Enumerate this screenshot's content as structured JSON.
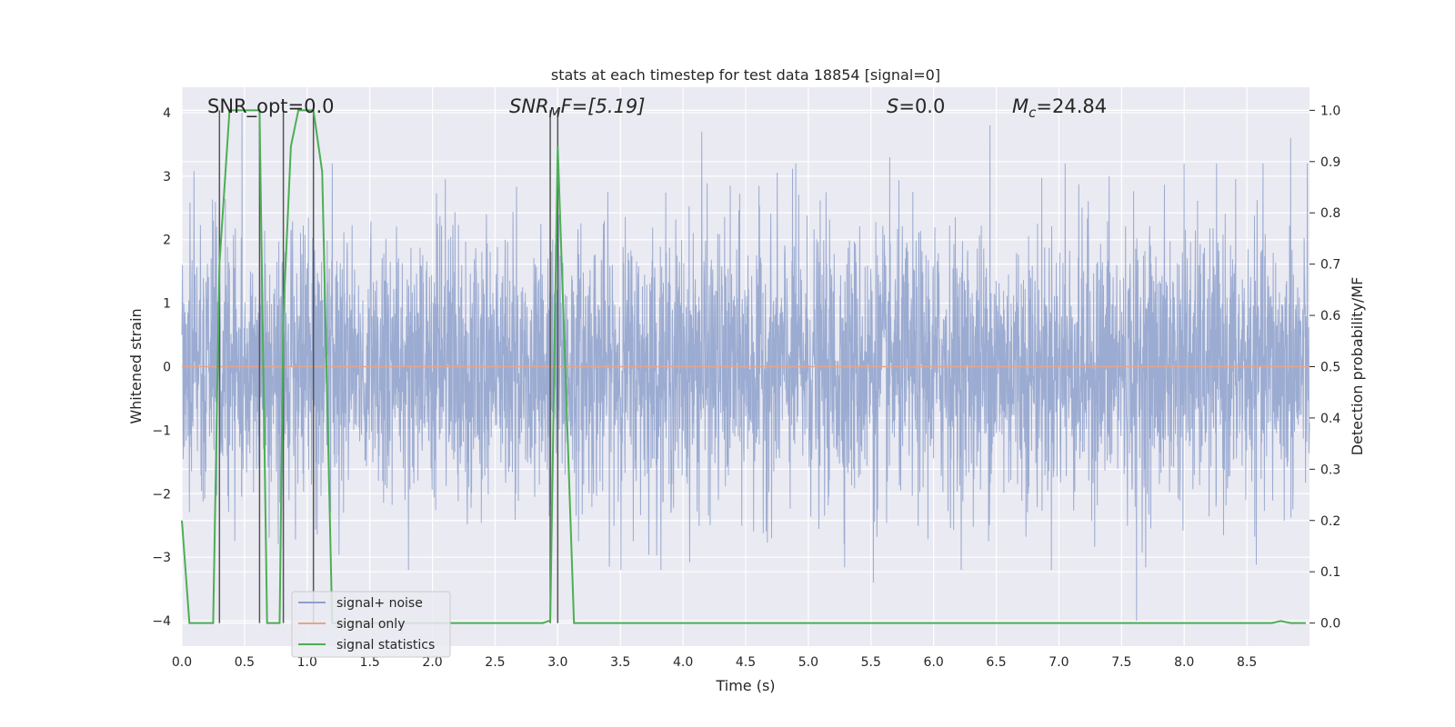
{
  "chart_data": {
    "type": "line",
    "title": "stats at each timestep for test data 18854 [signal=0]",
    "xlabel": "Time (s)",
    "ylabel_left": "Whitened strain",
    "ylabel_right": "Detection probability/MF",
    "xlim": [
      0.0,
      9.0
    ],
    "ylim_left": [
      -4.4,
      4.4
    ],
    "ylim_right": [
      -0.045,
      1.045
    ],
    "x_ticks": [
      "0.0",
      "0.5",
      "1.0",
      "1.5",
      "2.0",
      "2.5",
      "3.0",
      "3.5",
      "4.0",
      "4.5",
      "5.0",
      "5.5",
      "6.0",
      "6.5",
      "7.0",
      "7.5",
      "8.0",
      "8.5"
    ],
    "y_ticks_left": [
      "−4",
      "−3",
      "−2",
      "−1",
      "0",
      "1",
      "2",
      "3",
      "4"
    ],
    "y_ticks_right": [
      "0.0",
      "0.1",
      "0.2",
      "0.3",
      "0.4",
      "0.5",
      "0.6",
      "0.7",
      "0.8",
      "0.9",
      "1.0"
    ],
    "grid": true,
    "colors": {
      "background": "#eaeaf2",
      "grid": "#ffffff",
      "noise": "#8da0cb",
      "signal_only": "#e5a58a",
      "statistics": "#4cae55",
      "event_lines": "#555555"
    },
    "annotations": {
      "snr_opt": "SNR_opt=0.0",
      "snr_mf_main": "SNR",
      "snr_mf_sub": "M",
      "snr_mf_rest": "F=[5.19]",
      "s_main": "S",
      "s_rest": "=0.0",
      "mc_main": "M",
      "mc_sub": "c",
      "mc_rest": "=24.84"
    },
    "legend": {
      "location": "lower-left",
      "entries": [
        "signal+ noise",
        "signal only",
        "signal statistics"
      ]
    },
    "event_times": [
      0.3,
      0.62,
      0.81,
      1.05,
      2.94,
      3.0
    ],
    "series": [
      {
        "name": "signal+ noise",
        "axis": "left",
        "description": "whitened strain noise, amplitude ~N(0,1), spiky",
        "peaks": [
          {
            "x": 0.25,
            "y": 2.3
          },
          {
            "x": 0.3,
            "y": 3.0
          },
          {
            "x": 0.48,
            "y": 4.0
          },
          {
            "x": 1.05,
            "y": 3.4
          },
          {
            "x": 1.2,
            "y": 3.2
          },
          {
            "x": 1.81,
            "y": -3.2
          },
          {
            "x": 2.43,
            "y": 2.4
          },
          {
            "x": 3.0,
            "y": 2.6
          },
          {
            "x": 4.15,
            "y": 3.7
          },
          {
            "x": 4.9,
            "y": 3.2
          },
          {
            "x": 5.52,
            "y": -3.4
          },
          {
            "x": 5.65,
            "y": 3.3
          },
          {
            "x": 6.45,
            "y": 3.8
          },
          {
            "x": 7.05,
            "y": 3.2
          },
          {
            "x": 7.4,
            "y": 3.0
          },
          {
            "x": 7.62,
            "y": -4.0
          },
          {
            "x": 8.0,
            "y": 3.2
          },
          {
            "x": 8.85,
            "y": 3.6
          }
        ]
      },
      {
        "name": "signal only",
        "axis": "left",
        "x": [
          0.0,
          9.0
        ],
        "y": [
          0.0,
          0.0
        ]
      },
      {
        "name": "signal statistics",
        "axis": "right",
        "x": [
          0.0,
          0.06,
          0.25,
          0.3,
          0.38,
          0.62,
          0.68,
          0.78,
          0.81,
          0.87,
          0.93,
          1.05,
          1.12,
          1.2,
          1.3,
          2.88,
          2.94,
          3.0,
          3.13,
          8.7,
          8.77,
          8.85,
          8.97
        ],
        "y": [
          0.2,
          0.0,
          0.0,
          0.7,
          1.0,
          1.0,
          0.0,
          0.0,
          0.6,
          0.93,
          1.0,
          1.0,
          0.88,
          0.0,
          0.0,
          0.0,
          0.005,
          0.93,
          0.0,
          0.0,
          0.004,
          0.0,
          0.0
        ]
      }
    ]
  }
}
